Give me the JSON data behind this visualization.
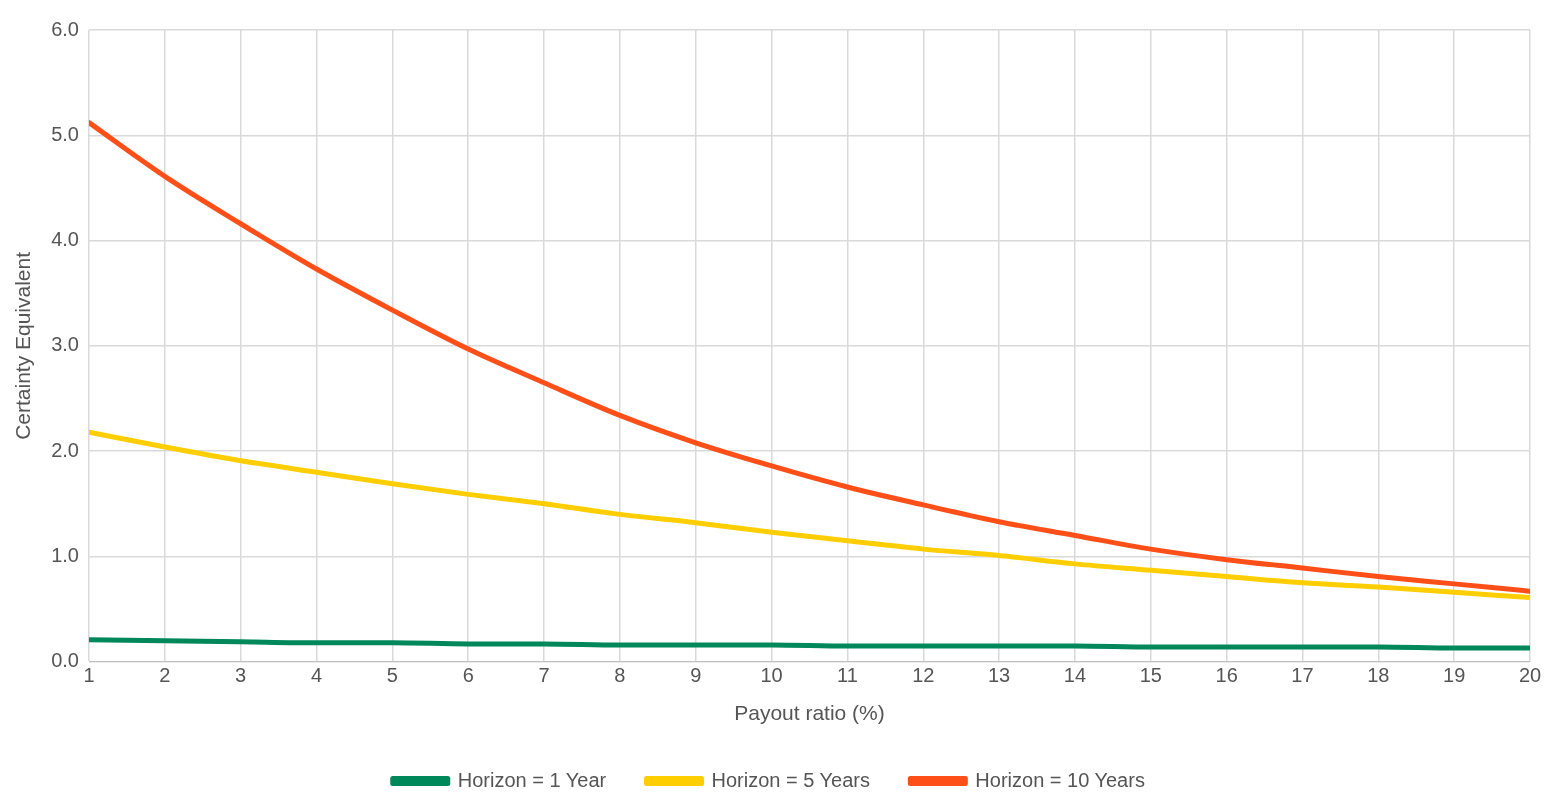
{
  "chart_data": {
    "type": "line",
    "xlabel": "Payout ratio (%)",
    "ylabel": "Certainty Equivalent",
    "x": [
      1,
      2,
      3,
      4,
      5,
      6,
      7,
      8,
      9,
      10,
      11,
      12,
      13,
      14,
      15,
      16,
      17,
      18,
      19,
      20
    ],
    "xlim": [
      1,
      20
    ],
    "xticks": [
      1,
      2,
      3,
      4,
      5,
      6,
      7,
      8,
      9,
      10,
      11,
      12,
      13,
      14,
      15,
      16,
      17,
      18,
      19,
      20
    ],
    "ylim": [
      0,
      6
    ],
    "yticks": [
      {
        "value": 0,
        "label": "0.0"
      },
      {
        "value": 1,
        "label": "1.0"
      },
      {
        "value": 2,
        "label": "2.0"
      },
      {
        "value": 3,
        "label": "3.0"
      },
      {
        "value": 4,
        "label": "4.0"
      },
      {
        "value": 5,
        "label": "5.0"
      },
      {
        "value": 6,
        "label": "6.0"
      }
    ],
    "grid": true,
    "legend": "bottom",
    "marker": "none",
    "line_style": "solid",
    "series": [
      {
        "name": "Horizon = 1 Year",
        "color": "#00875a",
        "values": [
          0.21,
          0.2,
          0.19,
          0.18,
          0.18,
          0.17,
          0.17,
          0.16,
          0.16,
          0.16,
          0.15,
          0.15,
          0.15,
          0.15,
          0.14,
          0.14,
          0.14,
          0.14,
          0.13,
          0.13
        ]
      },
      {
        "name": "Horizon = 5 Years",
        "color": "#ffce00",
        "values": [
          2.18,
          2.04,
          1.91,
          1.8,
          1.69,
          1.59,
          1.5,
          1.4,
          1.32,
          1.23,
          1.15,
          1.07,
          1.01,
          0.93,
          0.87,
          0.81,
          0.75,
          0.71,
          0.66,
          0.61
        ]
      },
      {
        "name": "Horizon = 10 Years",
        "color": "#ff4f19",
        "values": [
          5.12,
          4.61,
          4.16,
          3.73,
          3.34,
          2.97,
          2.65,
          2.34,
          2.08,
          1.86,
          1.66,
          1.49,
          1.33,
          1.2,
          1.07,
          0.97,
          0.89,
          0.81,
          0.74,
          0.67
        ]
      }
    ]
  }
}
